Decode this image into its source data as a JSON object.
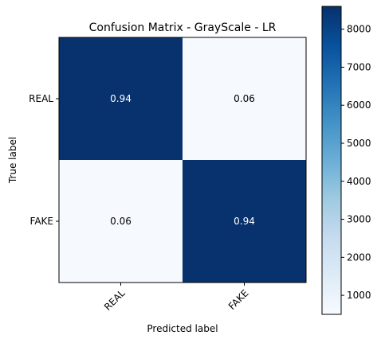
{
  "chart_data": {
    "type": "heatmap",
    "title": "Confusion Matrix - GrayScale - LR",
    "xlabel": "Predicted label",
    "ylabel": "True label",
    "x_categories": [
      "REAL",
      "FAKE"
    ],
    "y_categories": [
      "REAL",
      "FAKE"
    ],
    "matrix_labels": [
      [
        "0.94",
        "0.06"
      ],
      [
        "0.06",
        "0.94"
      ]
    ],
    "matrix_counts": [
      [
        8550,
        550
      ],
      [
        550,
        8550
      ]
    ],
    "colormap": "Blues",
    "colorbar": {
      "vmin": 500,
      "vmax": 8600,
      "ticks": [
        1000,
        2000,
        3000,
        4000,
        5000,
        6000,
        7000,
        8000
      ],
      "tick_labels": [
        "1000",
        "2000",
        "3000",
        "4000",
        "5000",
        "6000",
        "7000",
        "8000"
      ]
    },
    "colors": {
      "high": "#08306b",
      "low": "#f7fbff",
      "text_on_dark": "#ffffff",
      "text_on_light": "#000000"
    }
  }
}
